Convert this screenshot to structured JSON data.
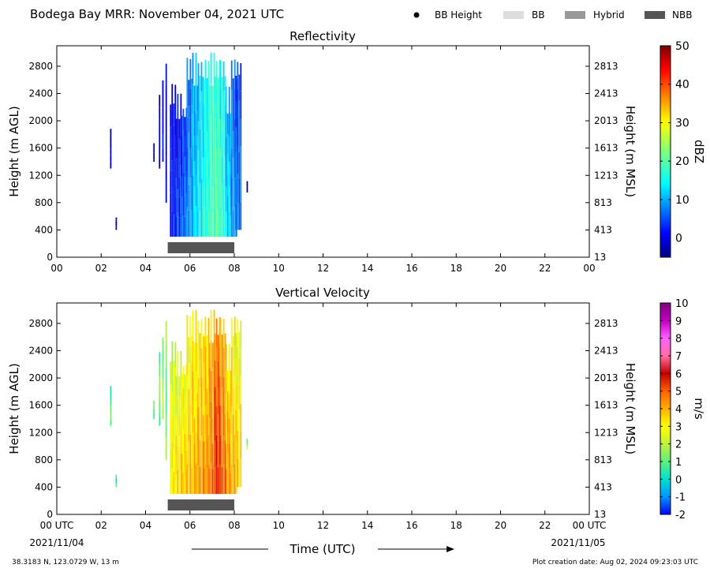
{
  "header": {
    "title": "Bodega Bay MRR:  November 04, 2021 UTC",
    "legend": [
      {
        "label": "BB Height",
        "marker": "dot",
        "color": "#000000"
      },
      {
        "label": "BB",
        "marker": "box",
        "color": "#dddddd"
      },
      {
        "label": "Hybrid",
        "marker": "box",
        "color": "#999999"
      },
      {
        "label": "NBB",
        "marker": "box",
        "color": "#555555"
      }
    ]
  },
  "footer": {
    "location": "38.3183 N, 123.0729 W, 13 m",
    "creation": "Plot creation date: Aug 02, 2024 09:23:03 UTC",
    "xlabel": "Time (UTC)",
    "start_date": "2021/11/04",
    "end_date": "2021/11/05"
  },
  "chart_data": [
    {
      "type": "heatmap",
      "title": "Reflectivity",
      "ylabel": "Height (m AGL)",
      "ylabel_right": "Height (m MSL)",
      "xlim": [
        0,
        24
      ],
      "ylim": [
        0,
        3100
      ],
      "x_ticks": [
        "00",
        "02",
        "04",
        "06",
        "08",
        "10",
        "12",
        "14",
        "16",
        "18",
        "20",
        "22",
        "00"
      ],
      "y_ticks": [
        0,
        400,
        800,
        1200,
        1600,
        2000,
        2400,
        2800
      ],
      "y_ticks_right": [
        "13",
        "413",
        "813",
        "1213",
        "1613",
        "2013",
        "2413",
        "2813"
      ],
      "colorbar": {
        "label": "dBZ",
        "min": -5,
        "max": 50,
        "ticks": [
          0,
          10,
          20,
          30,
          40,
          50
        ],
        "colormap": "jet"
      },
      "samples": [
        {
          "t": 2.4,
          "h0": 1300,
          "h1": 2000,
          "v": -3
        },
        {
          "t": 2.65,
          "h0": 400,
          "h1": 620,
          "v": -3
        },
        {
          "t": 4.35,
          "h0": 1400,
          "h1": 1700,
          "v": -3
        },
        {
          "t": 4.6,
          "h0": 1300,
          "h1": 2400,
          "v": -2
        },
        {
          "t": 4.75,
          "h0": 1400,
          "h1": 2600,
          "v": 0
        },
        {
          "t": 4.9,
          "h0": 800,
          "h1": 3000,
          "v": -1
        },
        {
          "t": 5.1,
          "h0": 300,
          "h1": 2600,
          "v": 2
        },
        {
          "t": 5.35,
          "h0": 300,
          "h1": 2400,
          "v": 4
        },
        {
          "t": 5.6,
          "h0": 300,
          "h1": 2300,
          "v": 6
        },
        {
          "t": 5.85,
          "h0": 300,
          "h1": 3000,
          "v": 9
        },
        {
          "t": 6.1,
          "h0": 300,
          "h1": 3000,
          "v": 12
        },
        {
          "t": 6.35,
          "h0": 300,
          "h1": 3000,
          "v": 14
        },
        {
          "t": 6.6,
          "h0": 300,
          "h1": 3000,
          "v": 17
        },
        {
          "t": 6.85,
          "h0": 300,
          "h1": 3000,
          "v": 19
        },
        {
          "t": 7.1,
          "h0": 300,
          "h1": 3000,
          "v": 20
        },
        {
          "t": 7.35,
          "h0": 300,
          "h1": 3000,
          "v": 17
        },
        {
          "t": 7.6,
          "h0": 300,
          "h1": 2500,
          "v": 12
        },
        {
          "t": 7.85,
          "h0": 300,
          "h1": 3000,
          "v": 9
        },
        {
          "t": 8.05,
          "h0": 400,
          "h1": 3000,
          "v": 7
        },
        {
          "t": 8.55,
          "h0": 950,
          "h1": 1150,
          "v": -4
        }
      ],
      "bb_bands": [
        {
          "start": 5.0,
          "end": 8.0,
          "type": "NBB"
        }
      ]
    },
    {
      "type": "heatmap",
      "title": "Vertical Velocity",
      "ylabel": "Height (m AGL)",
      "ylabel_right": "Height (m MSL)",
      "xlim": [
        0,
        24
      ],
      "ylim": [
        0,
        3100
      ],
      "x_ticks": [
        "00 UTC",
        "02",
        "04",
        "06",
        "08",
        "10",
        "12",
        "14",
        "16",
        "18",
        "20",
        "22",
        "00 UTC"
      ],
      "y_ticks": [
        0,
        400,
        800,
        1200,
        1600,
        2000,
        2400,
        2800
      ],
      "y_ticks_right": [
        "13",
        "413",
        "813",
        "1213",
        "1613",
        "2013",
        "2413",
        "2813"
      ],
      "colorbar": {
        "label": "m/s",
        "min": -2,
        "max": 10,
        "ticks": [
          -2,
          -1,
          0,
          1,
          2,
          3,
          4,
          5,
          6,
          7,
          8,
          9,
          10
        ],
        "colormap": "velocity"
      },
      "samples": [
        {
          "t": 2.4,
          "h0": 1300,
          "h1": 2000,
          "v": 0.8
        },
        {
          "t": 2.65,
          "h0": 400,
          "h1": 620,
          "v": 0.5
        },
        {
          "t": 4.35,
          "h0": 1400,
          "h1": 1700,
          "v": 1.0
        },
        {
          "t": 4.6,
          "h0": 1300,
          "h1": 2400,
          "v": 1.2
        },
        {
          "t": 4.75,
          "h0": 1400,
          "h1": 2600,
          "v": 1.5
        },
        {
          "t": 4.9,
          "h0": 800,
          "h1": 3000,
          "v": 1.3
        },
        {
          "t": 5.1,
          "h0": 300,
          "h1": 2600,
          "v": 2.0
        },
        {
          "t": 5.35,
          "h0": 300,
          "h1": 2400,
          "v": 2.2
        },
        {
          "t": 5.6,
          "h0": 300,
          "h1": 2300,
          "v": 2.5
        },
        {
          "t": 5.85,
          "h0": 300,
          "h1": 3000,
          "v": 2.6
        },
        {
          "t": 6.1,
          "h0": 300,
          "h1": 3000,
          "v": 2.8
        },
        {
          "t": 6.35,
          "h0": 300,
          "h1": 3000,
          "v": 3.0
        },
        {
          "t": 6.6,
          "h0": 300,
          "h1": 3000,
          "v": 3.2
        },
        {
          "t": 6.85,
          "h0": 300,
          "h1": 3000,
          "v": 3.6
        },
        {
          "t": 7.1,
          "h0": 300,
          "h1": 3000,
          "v": 4.5
        },
        {
          "t": 7.35,
          "h0": 300,
          "h1": 3000,
          "v": 3.8
        },
        {
          "t": 7.6,
          "h0": 300,
          "h1": 2500,
          "v": 3.2
        },
        {
          "t": 7.85,
          "h0": 300,
          "h1": 3000,
          "v": 2.8
        },
        {
          "t": 8.05,
          "h0": 400,
          "h1": 3000,
          "v": 2.4
        },
        {
          "t": 8.55,
          "h0": 950,
          "h1": 1150,
          "v": 1.0
        }
      ],
      "bb_bands": [
        {
          "start": 5.0,
          "end": 8.0,
          "type": "NBB"
        }
      ]
    }
  ]
}
